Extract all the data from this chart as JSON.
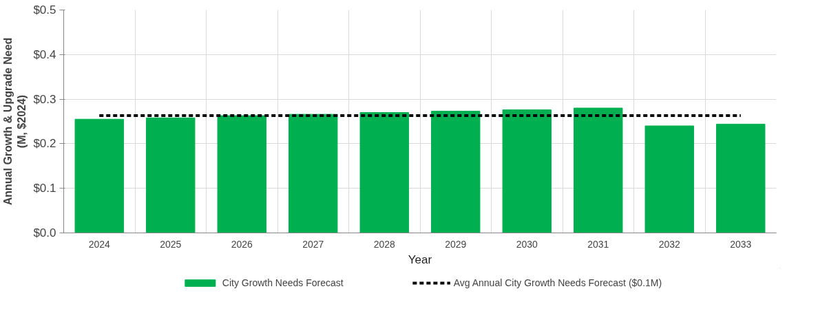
{
  "chart_data": {
    "type": "bar",
    "xlabel": "Year",
    "ylabel": "Annual Growth & Upgrade Need\n(M, $2024)",
    "categories": [
      "2024",
      "2025",
      "2026",
      "2027",
      "2028",
      "2029",
      "2030",
      "2031",
      "2032",
      "2033"
    ],
    "series": [
      {
        "name": "City Growth Needs Forecast",
        "color": "#00b050",
        "values": [
          0.255,
          0.258,
          0.263,
          0.266,
          0.27,
          0.273,
          0.276,
          0.28,
          0.24,
          0.244
        ]
      },
      {
        "name": "Avg Annual City Growth Needs Forecast ($0.1M)",
        "type": "line",
        "color": "#000000",
        "line_style": "dashed",
        "values": [
          0.263,
          0.263,
          0.263,
          0.263,
          0.263,
          0.263,
          0.263,
          0.263,
          0.263,
          0.263
        ]
      }
    ],
    "ylim": [
      0,
      0.5
    ],
    "yticks": [
      {
        "value": 0,
        "label": "$0.0"
      },
      {
        "value": 0.1,
        "label": "$0.1"
      },
      {
        "value": 0.2,
        "label": "$0.2"
      },
      {
        "value": 0.3,
        "label": "$0.3"
      },
      {
        "value": 0.4,
        "label": "$0.4"
      },
      {
        "value": 0.5,
        "label": "$0.5"
      }
    ],
    "grid": true,
    "legend": "bottom"
  }
}
